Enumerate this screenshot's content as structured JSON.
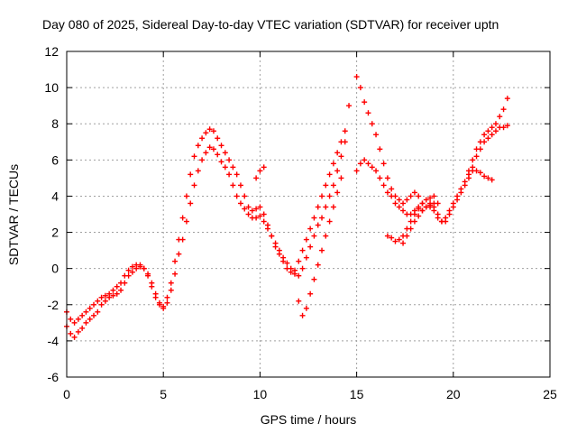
{
  "chart_data": {
    "type": "scatter",
    "title": "Day 080 of 2025, Sidereal Day-to-day VTEC variation (SDTVAR) for receiver uptn",
    "xlabel": "GPS time / hours",
    "ylabel": "SDTVAR / TECUs",
    "xlim": [
      0,
      25
    ],
    "ylim": [
      -6,
      12
    ],
    "xticks": [
      0,
      5,
      10,
      15,
      20,
      25
    ],
    "yticks": [
      -6,
      -4,
      -2,
      0,
      2,
      4,
      6,
      8,
      10,
      12
    ],
    "grid": true,
    "marker": "+",
    "series_color": "#ff0000",
    "series": [
      {
        "x": [
          0.0,
          0.2,
          0.4,
          0.6,
          0.8,
          1.0,
          1.2,
          1.4,
          1.6,
          1.8,
          2.0,
          2.2,
          2.4,
          2.6,
          2.8,
          3.0,
          3.2,
          3.4,
          3.6,
          3.8,
          4.0,
          4.2,
          4.4,
          4.6,
          4.8,
          5.0,
          5.2,
          5.4,
          5.6,
          5.8,
          6.0,
          6.2,
          6.4,
          6.6,
          6.8,
          7.0,
          7.2,
          7.4,
          7.6,
          7.8,
          8.0,
          8.2,
          8.4,
          8.6,
          8.8,
          9.0,
          9.2,
          9.4,
          9.6,
          9.8,
          10.0,
          10.2,
          10.4,
          10.6,
          10.8,
          11.0,
          11.2,
          11.4,
          11.6,
          11.8,
          12.0,
          12.2,
          12.4,
          12.6,
          12.8,
          13.0,
          13.2,
          13.4,
          13.6,
          13.8,
          14.0,
          14.2,
          14.4
        ],
        "y": [
          -3.2,
          -3.6,
          -3.8,
          -3.5,
          -3.3,
          -3.0,
          -2.8,
          -2.6,
          -2.4,
          -2.0,
          -1.8,
          -1.6,
          -1.5,
          -1.4,
          -1.2,
          -0.8,
          -0.4,
          -0.2,
          0.0,
          0.1,
          0.0,
          -0.3,
          -0.8,
          -1.4,
          -1.9,
          -2.2,
          -1.9,
          -1.2,
          -0.3,
          0.8,
          1.6,
          2.6,
          3.6,
          4.6,
          5.4,
          6.0,
          6.4,
          6.7,
          6.6,
          6.3,
          5.9,
          5.6,
          5.2,
          4.6,
          4.0,
          3.6,
          3.3,
          3.0,
          2.8,
          2.8,
          2.9,
          2.6,
          2.2,
          1.8,
          1.4,
          1.0,
          0.6,
          0.3,
          0.0,
          -0.3,
          -0.4,
          0.0,
          0.6,
          1.2,
          1.8,
          2.4,
          2.8,
          3.4,
          4.0,
          4.6,
          5.4,
          6.2,
          7.0
        ]
      },
      {
        "x": [
          0.0,
          0.2,
          0.4,
          0.6,
          0.8,
          1.0,
          1.2,
          1.4,
          1.6,
          1.8,
          2.0,
          2.2,
          2.4,
          2.6,
          2.8,
          3.0,
          3.2,
          3.4,
          3.6,
          3.8,
          4.0,
          4.2,
          4.4,
          4.6,
          4.8,
          5.0,
          5.2,
          5.4,
          5.6,
          5.8,
          6.0,
          6.2,
          6.4,
          6.6,
          6.8,
          7.0,
          7.2,
          7.4,
          7.6,
          7.8,
          8.0,
          8.2,
          8.4,
          8.6,
          8.8,
          9.0,
          9.2,
          9.4,
          9.6,
          9.8,
          10.0,
          10.2,
          10.4,
          10.6,
          10.8,
          11.0,
          11.2,
          11.4,
          11.6,
          11.8,
          12.0,
          12.2,
          12.4,
          12.6,
          12.8,
          13.0,
          13.2,
          13.4,
          13.6,
          13.8,
          14.0,
          14.2,
          14.4
        ],
        "y": [
          -2.4,
          -2.8,
          -3.0,
          -2.8,
          -2.6,
          -2.4,
          -2.2,
          -2.0,
          -1.8,
          -1.6,
          -1.5,
          -1.4,
          -1.2,
          -1.0,
          -0.8,
          -0.4,
          -0.1,
          0.1,
          0.2,
          0.2,
          0.0,
          -0.4,
          -1.0,
          -1.6,
          -2.0,
          -2.1,
          -1.6,
          -0.8,
          0.4,
          1.6,
          2.8,
          4.0,
          5.2,
          6.2,
          6.8,
          7.2,
          7.5,
          7.7,
          7.6,
          7.2,
          6.8,
          6.4,
          6.0,
          5.6,
          5.2,
          4.6,
          4.0,
          3.4,
          3.2,
          3.3,
          3.4,
          3.0,
          2.4,
          1.8,
          1.2,
          0.8,
          0.4,
          0.0,
          -0.2,
          -0.1,
          0.4,
          1.0,
          1.6,
          2.2,
          2.8,
          3.4,
          4.0,
          4.6,
          5.2,
          5.8,
          6.4,
          7.0,
          7.6
        ]
      },
      {
        "x": [
          12.0,
          12.2,
          12.4,
          12.6,
          12.8,
          13.0,
          13.2,
          13.4,
          13.6,
          13.8,
          14.0,
          14.2
        ],
        "y": [
          -1.8,
          -2.6,
          -2.2,
          -1.4,
          -0.6,
          0.2,
          1.0,
          1.8,
          2.6,
          3.4,
          4.2,
          5.0
        ]
      },
      {
        "x": [
          15.0,
          15.2,
          15.4,
          15.6,
          15.8,
          16.0,
          16.2,
          16.4,
          16.6,
          16.8,
          17.0,
          17.2,
          17.4,
          17.6,
          17.8,
          18.0,
          18.2,
          18.4,
          18.6,
          18.8,
          19.0,
          19.2,
          19.4,
          19.6,
          19.8,
          20.0,
          20.2,
          20.4,
          20.6,
          20.8,
          21.0,
          21.2,
          21.4,
          21.6,
          21.8,
          22.0,
          22.2,
          22.4,
          22.6,
          22.8
        ],
        "y": [
          10.6,
          10.0,
          9.2,
          8.6,
          8.0,
          7.4,
          6.6,
          5.8,
          5.0,
          4.4,
          4.0,
          3.8,
          3.6,
          3.8,
          4.0,
          4.2,
          4.0,
          3.6,
          3.4,
          3.4,
          3.2,
          2.8,
          2.6,
          2.8,
          3.2,
          3.6,
          4.0,
          4.4,
          4.8,
          5.4,
          6.0,
          6.6,
          7.0,
          7.4,
          7.6,
          7.8,
          8.0,
          8.4,
          8.8,
          9.4
        ]
      },
      {
        "x": [
          15.0,
          15.2,
          15.4,
          15.6,
          15.8,
          16.0,
          16.2,
          16.4,
          16.6,
          16.8,
          17.0,
          17.2,
          17.4,
          17.6,
          17.8,
          18.0,
          18.2,
          18.4,
          18.6,
          18.8,
          19.0,
          19.2,
          19.4,
          19.6,
          19.8,
          20.0,
          20.2,
          20.4,
          20.6,
          20.8,
          21.0,
          21.2,
          21.4,
          21.6,
          21.8,
          22.0,
          22.2,
          22.4,
          22.6,
          22.8
        ],
        "y": [
          5.4,
          5.8,
          6.0,
          5.8,
          5.6,
          5.4,
          5.0,
          4.6,
          4.2,
          4.0,
          3.6,
          3.4,
          3.2,
          3.0,
          3.0,
          3.2,
          3.3,
          3.2,
          3.4,
          3.6,
          3.4,
          3.0,
          2.6,
          2.6,
          3.0,
          3.4,
          3.8,
          4.2,
          4.6,
          5.0,
          5.6,
          6.2,
          6.6,
          7.0,
          7.2,
          7.4,
          7.6,
          7.8,
          7.8,
          7.9
        ]
      },
      {
        "x": [
          16.6,
          16.8,
          17.0,
          17.2,
          17.4,
          17.6,
          17.8,
          18.0,
          18.2,
          18.4,
          18.6,
          18.8,
          19.0
        ],
        "y": [
          1.8,
          1.7,
          1.5,
          1.6,
          1.8,
          2.2,
          2.6,
          3.0,
          3.4,
          3.6,
          3.8,
          3.9,
          4.0
        ]
      },
      {
        "x": [
          17.4,
          17.6,
          17.8,
          18.0,
          18.2,
          18.4,
          18.6,
          18.8,
          19.0,
          19.2
        ],
        "y": [
          1.4,
          1.8,
          2.2,
          2.6,
          2.9,
          3.2,
          3.4,
          3.5,
          3.6,
          3.6
        ]
      },
      {
        "x": [
          20.8,
          21.0,
          21.2,
          21.4,
          21.6,
          21.8,
          22.0
        ],
        "y": [
          5.2,
          5.4,
          5.4,
          5.3,
          5.1,
          5.0,
          4.9
        ]
      },
      {
        "x": [
          14.6
        ],
        "y": [
          9.0
        ]
      },
      {
        "x": [
          9.8,
          10.0,
          10.2
        ],
        "y": [
          5.0,
          5.4,
          5.6
        ]
      }
    ]
  }
}
